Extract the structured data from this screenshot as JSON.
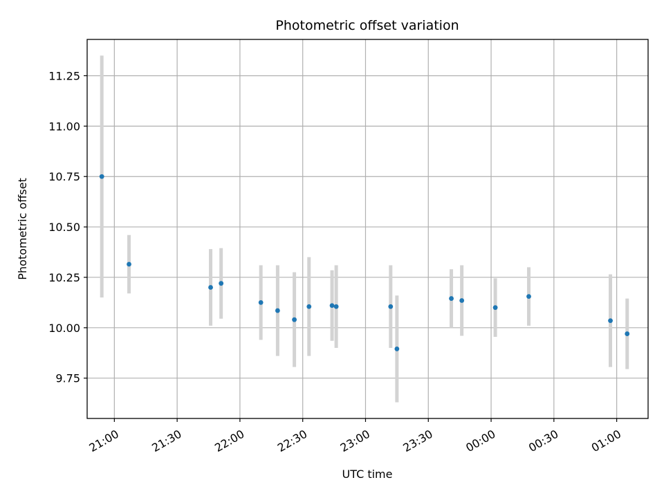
{
  "chart_data": {
    "type": "scatter",
    "title": "Photometric offset variation",
    "xlabel": "UTC time",
    "ylabel": "Photometric offset",
    "x_unit": "time of day (HH:MM, UTC), times after midnight belong to the next day",
    "xlim": [
      "20:47",
      "01:15"
    ],
    "ylim": [
      9.55,
      11.43
    ],
    "x_ticks": [
      "21:00",
      "21:30",
      "22:00",
      "22:30",
      "23:00",
      "23:30",
      "00:00",
      "00:30",
      "01:00"
    ],
    "y_ticks": [
      "9.75",
      "10.00",
      "10.25",
      "10.50",
      "10.75",
      "11.00",
      "11.25"
    ],
    "grid": true,
    "marker_color": "#1f77b4",
    "errorbar_color": "#d3d3d3",
    "points": [
      {
        "x": "20:54",
        "y": 10.75,
        "yerr": 0.6
      },
      {
        "x": "21:07",
        "y": 10.315,
        "yerr": 0.145
      },
      {
        "x": "21:46",
        "y": 10.2,
        "yerr": 0.19
      },
      {
        "x": "21:51",
        "y": 10.22,
        "yerr": 0.175
      },
      {
        "x": "22:10",
        "y": 10.125,
        "yerr": 0.185
      },
      {
        "x": "22:18",
        "y": 10.085,
        "yerr": 0.225
      },
      {
        "x": "22:26",
        "y": 10.04,
        "yerr": 0.235
      },
      {
        "x": "22:33",
        "y": 10.105,
        "yerr": 0.245
      },
      {
        "x": "22:44",
        "y": 10.11,
        "yerr": 0.175
      },
      {
        "x": "22:46",
        "y": 10.105,
        "yerr": 0.205
      },
      {
        "x": "23:12",
        "y": 10.105,
        "yerr": 0.205
      },
      {
        "x": "23:15",
        "y": 9.895,
        "yerr": 0.265
      },
      {
        "x": "23:41",
        "y": 10.145,
        "yerr": 0.145
      },
      {
        "x": "23:46",
        "y": 10.135,
        "yerr": 0.175
      },
      {
        "x": "00:02",
        "y": 10.1,
        "yerr": 0.145
      },
      {
        "x": "00:18",
        "y": 10.155,
        "yerr": 0.145
      },
      {
        "x": "00:57",
        "y": 10.035,
        "yerr": 0.23
      },
      {
        "x": "01:05",
        "y": 9.97,
        "yerr": 0.175
      }
    ]
  }
}
